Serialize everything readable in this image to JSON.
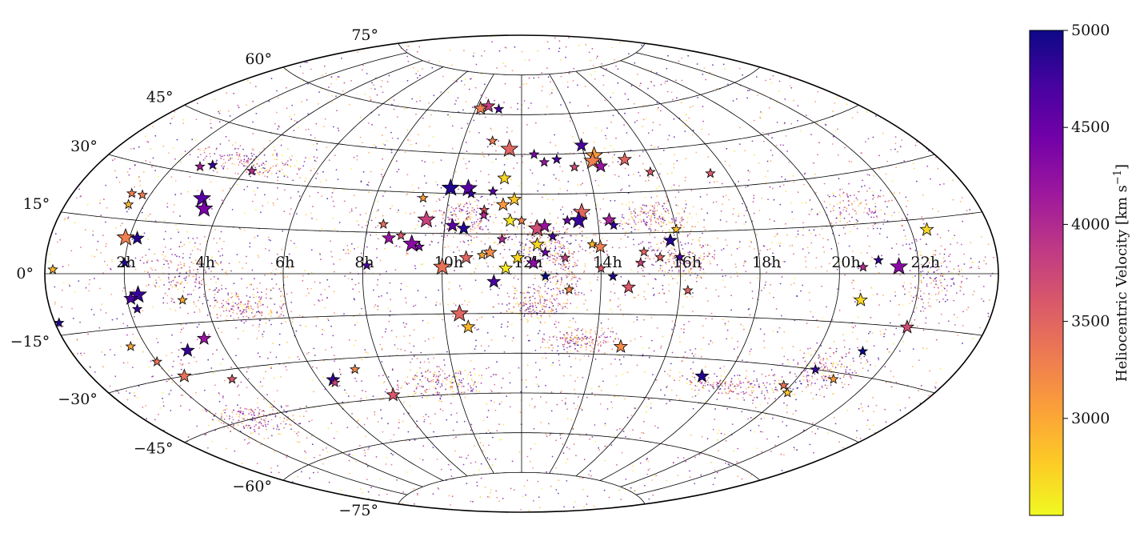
{
  "chart_data": {
    "type": "scatter",
    "projection": "aitoff",
    "title": "",
    "colorbar": {
      "label": "Heliocentric Velocity [km s$^{-1}$]",
      "label_text": "Heliocentric Velocity [km s",
      "label_sup": "−1",
      "label_close": "]",
      "range": [
        2500,
        5000
      ],
      "ticks": [
        3000,
        3500,
        4000,
        4500,
        5000
      ],
      "tick_labels": [
        "3000",
        "3500",
        "4000",
        "4500",
        "5000"
      ],
      "colormap": [
        "#f0f921",
        "#fdca26",
        "#fb9f3a",
        "#ed7953",
        "#d8576b",
        "#bd3786",
        "#9c179e",
        "#7201a8",
        "#46039f",
        "#0d0887"
      ]
    },
    "x_ticks": [
      "2h",
      "4h",
      "6h",
      "8h",
      "10h",
      "12h",
      "14h",
      "16h",
      "18h",
      "20h",
      "22h"
    ],
    "x_tick_ra": [
      2,
      4,
      6,
      8,
      10,
      12,
      14,
      16,
      18,
      20,
      22
    ],
    "y_ticks": [
      "75°",
      "60°",
      "45°",
      "30°",
      "15°",
      "0°",
      "−15°",
      "−30°",
      "−45°",
      "−60°",
      "−75°"
    ],
    "y_tick_dec": [
      75,
      60,
      45,
      30,
      15,
      0,
      -15,
      -30,
      -45,
      -60,
      -75
    ],
    "grid": true,
    "background_points": {
      "approx_count": 6000,
      "note_velocity_range": [
        2500,
        5000
      ]
    },
    "points": [
      {
        "ra": 10.0,
        "dec": 2.5,
        "v": 3400,
        "size": "L"
      },
      {
        "ra": 10.5,
        "dec": 63,
        "v": 3800,
        "size": "M"
      },
      {
        "ra": 10.2,
        "dec": 62,
        "v": 3300,
        "size": "M"
      },
      {
        "ra": 11.0,
        "dec": 62,
        "v": 4700,
        "size": "S"
      },
      {
        "ra": 11.6,
        "dec": 47,
        "v": 3500,
        "size": "L"
      },
      {
        "ra": 14.3,
        "dec": 44,
        "v": 3100,
        "size": "L"
      },
      {
        "ra": 14.2,
        "dec": 42,
        "v": 3300,
        "size": "L"
      },
      {
        "ra": 14.4,
        "dec": 40,
        "v": 4200,
        "size": "M"
      },
      {
        "ra": 14.0,
        "dec": 48,
        "v": 4700,
        "size": "M"
      },
      {
        "ra": 15.2,
        "dec": 42,
        "v": 3500,
        "size": "M"
      },
      {
        "ra": 15.8,
        "dec": 37,
        "v": 3600,
        "size": "S"
      },
      {
        "ra": 10.0,
        "dec": 32,
        "v": 4900,
        "size": "L"
      },
      {
        "ra": 10.5,
        "dec": 32,
        "v": 4600,
        "size": "L"
      },
      {
        "ra": 10.6,
        "dec": 30,
        "v": 4800,
        "size": "S"
      },
      {
        "ra": 11.2,
        "dec": 31,
        "v": 4600,
        "size": "S"
      },
      {
        "ra": 11.5,
        "dec": 36,
        "v": 2700,
        "size": "M"
      },
      {
        "ra": 11.8,
        "dec": 28,
        "v": 2800,
        "size": "M"
      },
      {
        "ra": 11.5,
        "dec": 26,
        "v": 3100,
        "size": "M"
      },
      {
        "ra": 11.0,
        "dec": 24,
        "v": 3600,
        "size": "S"
      },
      {
        "ra": 9.5,
        "dec": 20,
        "v": 3800,
        "size": "L"
      },
      {
        "ra": 10.2,
        "dec": 18,
        "v": 4600,
        "size": "M"
      },
      {
        "ra": 10.5,
        "dec": 17,
        "v": 4900,
        "size": "M"
      },
      {
        "ra": 11.7,
        "dec": 20,
        "v": 2600,
        "size": "M"
      },
      {
        "ra": 12.4,
        "dec": 17,
        "v": 3700,
        "size": "L"
      },
      {
        "ra": 12.6,
        "dec": 18,
        "v": 4200,
        "size": "M"
      },
      {
        "ra": 13.2,
        "dec": 20,
        "v": 4500,
        "size": "S"
      },
      {
        "ra": 13.6,
        "dec": 23,
        "v": 3500,
        "size": "L"
      },
      {
        "ra": 13.5,
        "dec": 20,
        "v": 4800,
        "size": "L"
      },
      {
        "ra": 14.3,
        "dec": 20,
        "v": 4100,
        "size": "M"
      },
      {
        "ra": 14.4,
        "dec": 18,
        "v": 4800,
        "size": "S"
      },
      {
        "ra": 9.2,
        "dec": 11,
        "v": 4300,
        "size": "L"
      },
      {
        "ra": 9.4,
        "dec": 10,
        "v": 4400,
        "size": "S"
      },
      {
        "ra": 8.6,
        "dec": 13,
        "v": 4200,
        "size": "M"
      },
      {
        "ra": 8.9,
        "dec": 14,
        "v": 3600,
        "size": "S"
      },
      {
        "ra": 12.4,
        "dec": 11,
        "v": 2700,
        "size": "M"
      },
      {
        "ra": 14.0,
        "dec": 10,
        "v": 3300,
        "size": "M"
      },
      {
        "ra": 13.8,
        "dec": 11,
        "v": 2900,
        "size": "S"
      },
      {
        "ra": 15.8,
        "dec": 12,
        "v": 4900,
        "size": "M"
      },
      {
        "ra": 16.0,
        "dec": 16,
        "v": 2800,
        "size": "S"
      },
      {
        "ra": 16.0,
        "dec": 6,
        "v": 4700,
        "size": "S"
      },
      {
        "ra": 11.2,
        "dec": 8,
        "v": 3200,
        "size": "M"
      },
      {
        "ra": 11.9,
        "dec": 6,
        "v": 2700,
        "size": "M"
      },
      {
        "ra": 12.3,
        "dec": 4,
        "v": 4300,
        "size": "M"
      },
      {
        "ra": 10.6,
        "dec": 6,
        "v": 3500,
        "size": "M"
      },
      {
        "ra": 11.0,
        "dec": 7,
        "v": 3000,
        "size": "S"
      },
      {
        "ra": 8.1,
        "dec": 3,
        "v": 4700,
        "size": "S"
      },
      {
        "ra": 11.6,
        "dec": 2,
        "v": 2600,
        "size": "M"
      },
      {
        "ra": 14.0,
        "dec": 2,
        "v": 3600,
        "size": "S"
      },
      {
        "ra": 14.3,
        "dec": -1,
        "v": 4900,
        "size": "S"
      },
      {
        "ra": 14.7,
        "dec": -5,
        "v": 3600,
        "size": "M"
      },
      {
        "ra": 12.6,
        "dec": -1,
        "v": 5000,
        "size": "S"
      },
      {
        "ra": 11.3,
        "dec": -3,
        "v": 4700,
        "size": "M"
      },
      {
        "ra": 13.2,
        "dec": -6,
        "v": 3200,
        "size": "S"
      },
      {
        "ra": 10.4,
        "dec": -15,
        "v": 3500,
        "size": "L"
      },
      {
        "ra": 10.6,
        "dec": -20,
        "v": 2900,
        "size": "M"
      },
      {
        "ra": 14.7,
        "dec": -27,
        "v": 3200,
        "size": "M"
      },
      {
        "ra": 16.2,
        "dec": -6,
        "v": 3500,
        "size": "S"
      },
      {
        "ra": 15.5,
        "dec": 6,
        "v": 3500,
        "size": "S"
      },
      {
        "ra": 15.1,
        "dec": 8,
        "v": 3500,
        "size": "S"
      },
      {
        "ra": 15.0,
        "dec": 4,
        "v": 3800,
        "size": "S"
      },
      {
        "ra": 17.5,
        "dec": 35,
        "v": 3600,
        "size": "S"
      },
      {
        "ra": 20.6,
        "dec": 2,
        "v": 4000,
        "size": "S"
      },
      {
        "ra": 21.0,
        "dec": 4,
        "v": 4800,
        "size": "S"
      },
      {
        "ra": 21.5,
        "dec": 2,
        "v": 4300,
        "size": "L"
      },
      {
        "ra": 22.4,
        "dec": 12,
        "v": 2700,
        "size": "M"
      },
      {
        "ra": 20.6,
        "dec": -8,
        "v": 2700,
        "size": "M"
      },
      {
        "ra": 22.0,
        "dec": -15,
        "v": 3700,
        "size": "M"
      },
      {
        "ra": 21.2,
        "dec": -23,
        "v": 5000,
        "size": "S"
      },
      {
        "ra": 21.0,
        "dec": -32,
        "v": 3100,
        "size": "S"
      },
      {
        "ra": 20.3,
        "dec": -30,
        "v": 4800,
        "size": "S"
      },
      {
        "ra": 19.8,
        "dec": -36,
        "v": 3400,
        "size": "S"
      },
      {
        "ra": 20.1,
        "dec": -38,
        "v": 2800,
        "size": "S"
      },
      {
        "ra": 17.3,
        "dec": -36,
        "v": 4900,
        "size": "M"
      },
      {
        "ra": 1.9,
        "dec": 10,
        "v": 3300,
        "size": "L"
      },
      {
        "ra": 2.2,
        "dec": 10,
        "v": 4900,
        "size": "M"
      },
      {
        "ra": 1.5,
        "dec": 22,
        "v": 3300,
        "size": "S"
      },
      {
        "ra": 1.8,
        "dec": 22,
        "v": 3300,
        "size": "S"
      },
      {
        "ra": 1.6,
        "dec": 19,
        "v": 2900,
        "size": "S"
      },
      {
        "ra": 3.4,
        "dec": 23,
        "v": 4600,
        "size": "L"
      },
      {
        "ra": 3.6,
        "dec": 20,
        "v": 4400,
        "size": "L"
      },
      {
        "ra": 2.7,
        "dec": 32,
        "v": 4100,
        "size": "S"
      },
      {
        "ra": 3.0,
        "dec": 33,
        "v": 4800,
        "size": "S"
      },
      {
        "ra": 4.2,
        "dec": 33,
        "v": 4000,
        "size": "S"
      },
      {
        "ra": 2.0,
        "dec": 3,
        "v": 4900,
        "size": "S"
      },
      {
        "ra": 0.2,
        "dec": 1,
        "v": 2900,
        "size": "S"
      },
      {
        "ra": 2.3,
        "dec": -6,
        "v": 4800,
        "size": "L"
      },
      {
        "ra": 2.1,
        "dec": -7,
        "v": 4700,
        "size": "M"
      },
      {
        "ra": 2.2,
        "dec": -10,
        "v": 4800,
        "size": "S"
      },
      {
        "ra": 0.1,
        "dec": -12,
        "v": 4900,
        "size": "S"
      },
      {
        "ra": 3.4,
        "dec": -8,
        "v": 3000,
        "size": "S"
      },
      {
        "ra": 1.6,
        "dec": -20,
        "v": 3000,
        "size": "S"
      },
      {
        "ra": 2.0,
        "dec": -25,
        "v": 3400,
        "size": "S"
      },
      {
        "ra": 3.0,
        "dec": -23,
        "v": 4800,
        "size": "M"
      },
      {
        "ra": 3.6,
        "dec": -20,
        "v": 4200,
        "size": "M"
      },
      {
        "ra": 2.4,
        "dec": -30,
        "v": 3400,
        "size": "M"
      },
      {
        "ra": 3.6,
        "dec": -33,
        "v": 3600,
        "size": "S"
      },
      {
        "ra": 6.4,
        "dec": -37,
        "v": 4800,
        "size": "M"
      },
      {
        "ra": 6.4,
        "dec": -38,
        "v": 3800,
        "size": "S"
      },
      {
        "ra": 7.2,
        "dec": -34,
        "v": 3200,
        "size": "S"
      },
      {
        "ra": 7.9,
        "dec": -44,
        "v": 3600,
        "size": "M"
      },
      {
        "ra": 9.3,
        "dec": 28,
        "v": 3100,
        "size": "S"
      },
      {
        "ra": 8.4,
        "dec": 18,
        "v": 3400,
        "size": "S"
      },
      {
        "ra": 11.0,
        "dec": 50,
        "v": 3300,
        "size": "S"
      },
      {
        "ra": 12.4,
        "dec": 45,
        "v": 4400,
        "size": "S"
      },
      {
        "ra": 12.7,
        "dec": 42,
        "v": 4200,
        "size": "S"
      },
      {
        "ra": 13.1,
        "dec": 43,
        "v": 4700,
        "size": "S"
      },
      {
        "ra": 13.6,
        "dec": 40,
        "v": 3700,
        "size": "S"
      },
      {
        "ra": 11.0,
        "dec": 22,
        "v": 4000,
        "size": "S"
      },
      {
        "ra": 12.0,
        "dec": 20,
        "v": 3300,
        "size": "S"
      },
      {
        "ra": 12.8,
        "dec": 14,
        "v": 4700,
        "size": "S"
      },
      {
        "ra": 12.6,
        "dec": 8,
        "v": 4500,
        "size": "S"
      },
      {
        "ra": 11.5,
        "dec": 13,
        "v": 4000,
        "size": "S"
      },
      {
        "ra": 13.1,
        "dec": 6,
        "v": 3800,
        "size": "S"
      }
    ]
  }
}
